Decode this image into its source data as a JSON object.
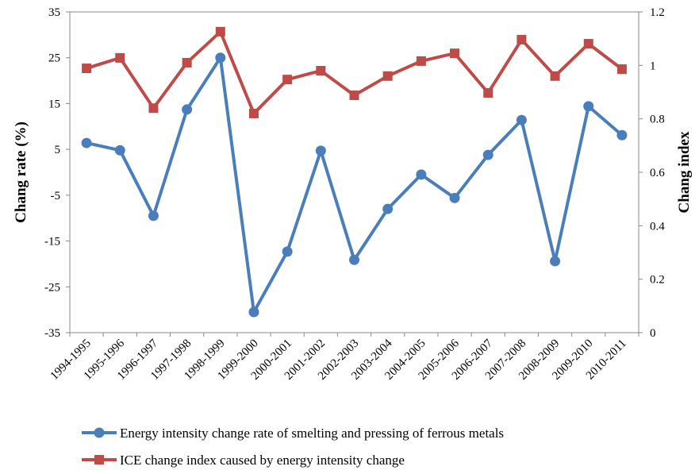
{
  "chart_data": {
    "type": "line",
    "ylabel": "Chang rate (%)",
    "y2label": "Chang index",
    "categories": [
      "1994-1995",
      "1995-1996",
      "1996-1997",
      "1997-1998",
      "1998-1999",
      "1999-2000",
      "2000-2001",
      "2001-2002",
      "2002-2003",
      "2003-2004",
      "2004-2005",
      "2005-2006",
      "2006-2007",
      "2007-2008",
      "2008-2009",
      "2009-2010",
      "2010-2011"
    ],
    "series": [
      {
        "name": "Energy intensity change rate of smelting and pressing of ferrous metals",
        "color": "#4a7ebb",
        "marker": "circle",
        "values": [
          6.4,
          4.8,
          -9.5,
          13.7,
          25,
          -30.5,
          -17.3,
          4.7,
          -19.1,
          -8,
          -0.5,
          -5.6,
          3.8,
          11.4,
          -19.4,
          14.4,
          8.1
        ]
      },
      {
        "name": "ICE change index caused by energy intensity change",
        "color": "#be4b48",
        "marker": "square",
        "axis": "y2",
        "values": [
          0.989,
          1.028,
          0.84,
          1.01,
          1.126,
          0.82,
          0.947,
          0.98,
          0.888,
          0.96,
          1.016,
          1.045,
          0.897,
          1.096,
          0.96,
          1.081,
          0.986
        ]
      }
    ],
    "ylim": [
      -35,
      35
    ],
    "yticks": [
      -35,
      -25,
      -15,
      -5,
      5,
      15,
      25,
      35
    ],
    "y2lim": [
      0,
      1.2
    ],
    "y2ticks": [
      0,
      0.2,
      0.4,
      0.6,
      0.8,
      1,
      1.2
    ]
  }
}
